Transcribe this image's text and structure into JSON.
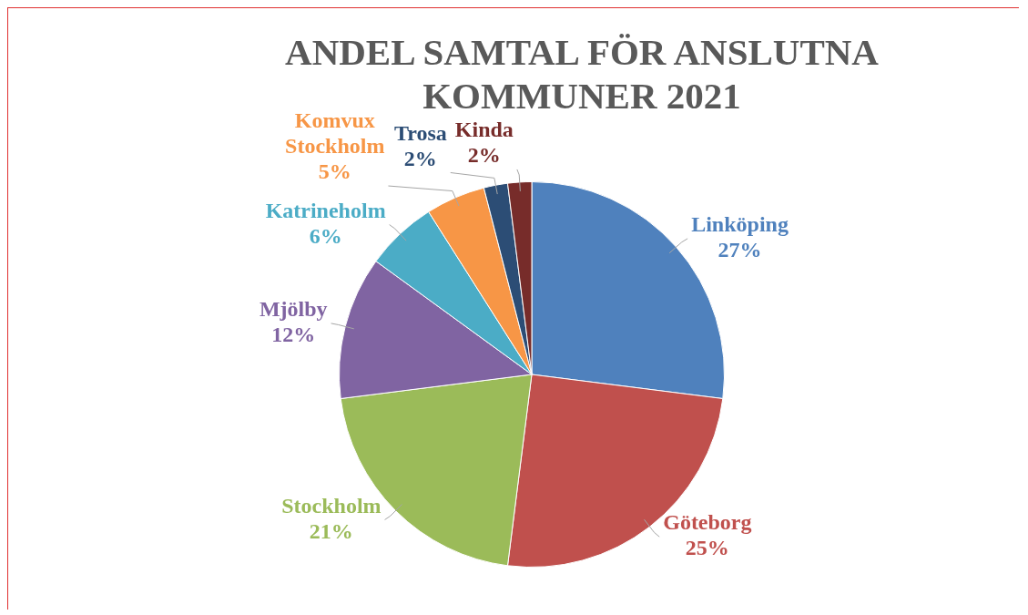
{
  "chart_data": {
    "type": "pie",
    "title": "ANDEL SAMTAL FÖR ANSLUTNA KOMMUNER 2021",
    "categories": [
      "Linköping",
      "Göteborg",
      "Stockholm",
      "Mjölby",
      "Katrineholm",
      "Komvux Stockholm",
      "Trosa",
      "Kinda"
    ],
    "values": [
      27,
      25,
      21,
      12,
      6,
      5,
      2,
      2
    ],
    "colors": [
      "#4f81bd",
      "#c0504d",
      "#9bbb59",
      "#8064a2",
      "#4bacc6",
      "#f79646",
      "#2c4d75",
      "#772c2a"
    ],
    "value_labels": [
      "27%",
      "25%",
      "21%",
      "12%",
      "6%",
      "5%",
      "2%",
      "2%"
    ],
    "data_labels": true,
    "legend": false
  }
}
